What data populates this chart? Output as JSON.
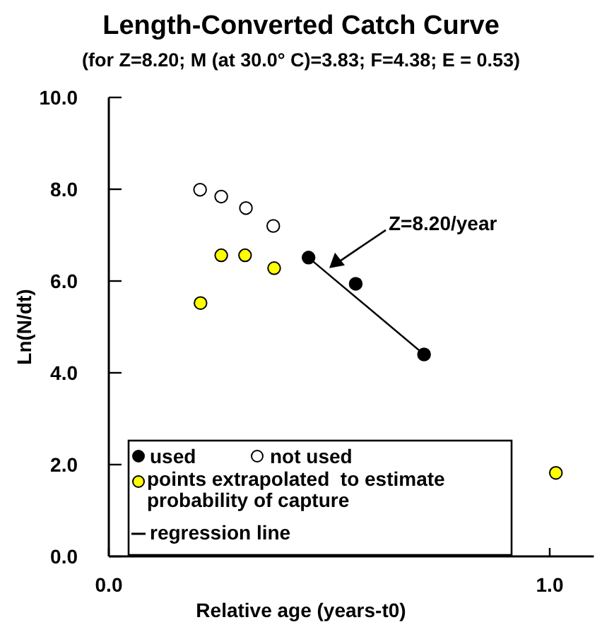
{
  "chart_data": {
    "type": "scatter",
    "title": "Length-Converted Catch Curve",
    "subtitle": "(for Z=8.20; M (at 30.0° C)=3.83; F=4.38; E = 0.53)",
    "xlabel": "Relative age (years-t0)",
    "ylabel": "Ln(N/dt)",
    "xlim": [
      0,
      1.1
    ],
    "xticks": [
      {
        "value": 0,
        "label": "0.0"
      },
      {
        "value": 1,
        "label": "1.0"
      }
    ],
    "ylim": [
      0,
      10
    ],
    "yticks": [
      {
        "value": 0,
        "label": "0.0"
      },
      {
        "value": 2,
        "label": "2.0"
      },
      {
        "value": 4,
        "label": "4.0"
      },
      {
        "value": 6,
        "label": "6.0"
      },
      {
        "value": 8,
        "label": "8.0"
      },
      {
        "value": 10,
        "label": "10.0"
      }
    ],
    "grid": false,
    "legend": "bottom left",
    "marker": "circle",
    "annotations": [
      {
        "text": "Z=8.20/year",
        "x": 0.5,
        "y": 6.28
      }
    ],
    "series": [
      {
        "name": "used",
        "color": "#000000",
        "x": [
          0.453,
          0.56,
          0.715
        ],
        "values": [
          6.51,
          5.94,
          4.4
        ]
      },
      {
        "name": "not used",
        "color": "#ffffff",
        "x": [
          0.207,
          0.255,
          0.311,
          0.373
        ],
        "values": [
          7.99,
          7.84,
          7.59,
          7.2
        ]
      },
      {
        "name": "points extrapolated  to estimate probability of capture",
        "color": "#ffff00",
        "x": [
          0.208,
          0.255,
          0.309,
          0.375,
          1.014
        ],
        "values": [
          5.52,
          6.56,
          6.56,
          6.28,
          1.82
        ]
      },
      {
        "name": "regression line",
        "type": "line",
        "marker": "none",
        "color": "#000000",
        "x": [
          0.453,
          0.715
        ],
        "values": [
          6.51,
          4.4
        ]
      }
    ]
  }
}
